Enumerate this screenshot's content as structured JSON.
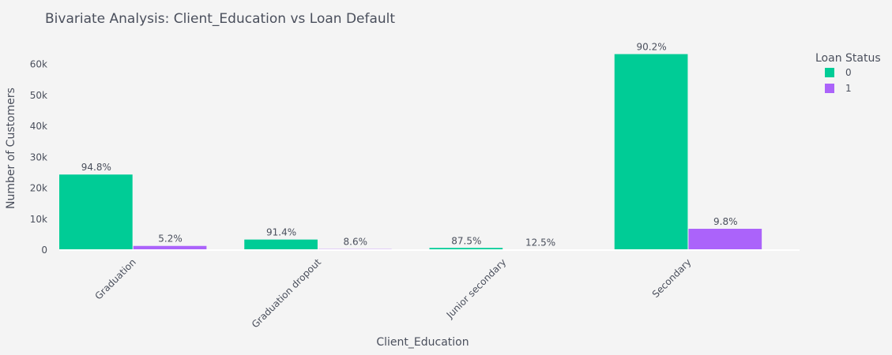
{
  "chart_data": {
    "type": "bar",
    "title": "Bivariate Analysis: Client_Education vs Loan Default",
    "xlabel": "Client_Education",
    "ylabel": "Number of Customers",
    "categories": [
      "Graduation",
      "Graduation dropout",
      "Junior secondary",
      "Secondary"
    ],
    "series": [
      {
        "name": "0",
        "color": "#00cc96",
        "values": [
          24400,
          3400,
          700,
          63300
        ],
        "labels": [
          "94.8%",
          "91.4%",
          "87.5%",
          "90.2%"
        ]
      },
      {
        "name": "1",
        "color": "#ab63fa",
        "values": [
          1340,
          320,
          100,
          6880
        ],
        "labels": [
          "5.2%",
          "8.6%",
          "12.5%",
          "9.8%"
        ]
      }
    ],
    "ylim": [
      0,
      66000
    ],
    "yticks": [
      0,
      10000,
      20000,
      30000,
      40000,
      50000,
      60000
    ],
    "ytick_labels": [
      "0",
      "10k",
      "20k",
      "30k",
      "40k",
      "50k",
      "60k"
    ],
    "legend_title": "Loan Status",
    "legend_position": "top-right",
    "grid": false
  }
}
